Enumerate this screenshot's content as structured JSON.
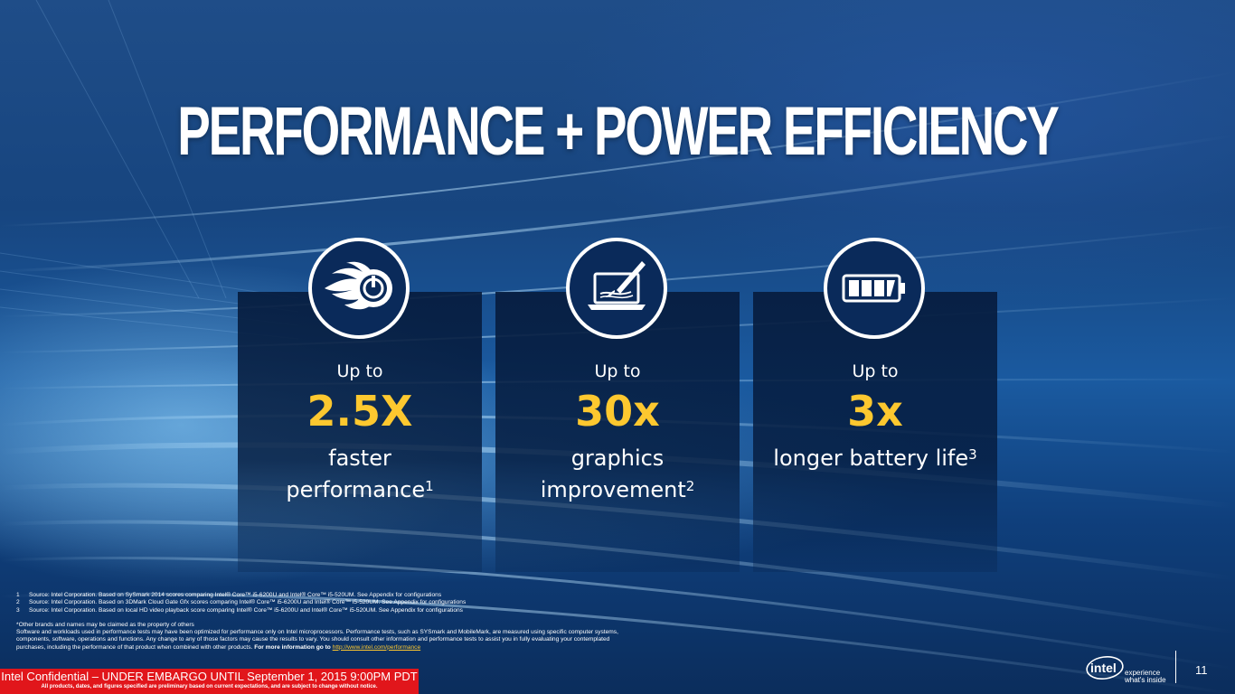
{
  "slide": {
    "title": "PERFORMANCE + POWER EFFICIENCY",
    "page_number": "11"
  },
  "cards": [
    {
      "icon": "flame-power-icon",
      "prefix": "Up to",
      "value": "2.5X",
      "desc_line1": "faster",
      "desc_line2": "performance",
      "footnote": "1"
    },
    {
      "icon": "laptop-brush-icon",
      "prefix": "Up to",
      "value": "30x",
      "desc_line1": "graphics",
      "desc_line2": "improvement",
      "footnote": "2"
    },
    {
      "icon": "battery-icon",
      "prefix": "Up to",
      "value": "3x",
      "desc_line1": "longer battery life",
      "desc_line2": "",
      "footnote": "3"
    }
  ],
  "footnotes": [
    {
      "num": "1",
      "text": "Source: Intel Corporation.  Based on SySmark 2014 scores comparing Intel® Core™ i5-6200U and Intel® Core™ i5-520UM.   See Appendix for configurations"
    },
    {
      "num": "2",
      "text": "Source: Intel Corporation.  Based on 3DMark Cloud Gate Gfx scores comparing Intel® Core™ i5-6200U and Intel® Core™ i5-520UM.  See Appendix for configurations"
    },
    {
      "num": "3",
      "text": "Source: Intel Corporation.  Based on local HD video playback score comparing Intel® Core™ i5-6200U and Intel® Core™ i5-520UM.  See Appendix for configurations"
    }
  ],
  "disclaimer": {
    "line1": "*Other brands and names may be claimed as the property of others",
    "line2": "Software and workloads used in performance tests may have been optimized for performance only on Intel microprocessors.  Performance tests, such as SYSmark and MobileMark, are measured using specific computer systems,",
    "line3": "components, software, operations and functions.  Any change to any of those factors may cause the results to vary.  You should consult other information and performance tests to assist you in fully evaluating your contemplated",
    "line4": "purchases, including the performance of that product when combined with other products.",
    "more_info": "For more information go to",
    "link": "http://www.intel.com/performance"
  },
  "banner": {
    "line1": "Intel Confidential – UNDER EMBARGO UNTIL September 1, 2015 9:00PM PDT",
    "line2": "All products, dates, and figures specified are preliminary based on current expectations, and are subject to change without notice."
  },
  "logo": {
    "brand": "intel",
    "tagline1": "experience",
    "tagline2": "what's inside"
  },
  "colors": {
    "accent": "#fdc82f",
    "banner": "#e1161b",
    "card_bg": "#061c3e"
  }
}
